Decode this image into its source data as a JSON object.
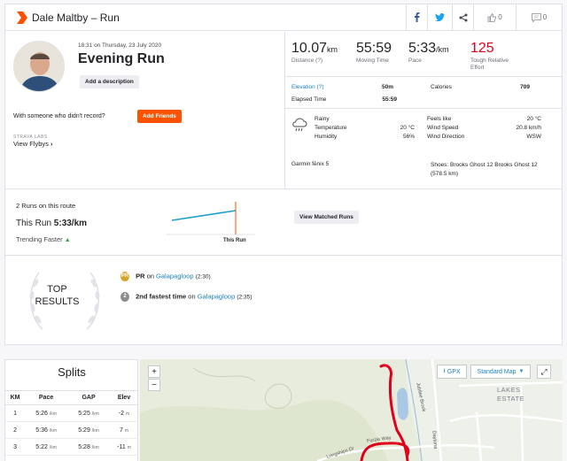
{
  "header": {
    "athlete": "Dale Maltby",
    "separator": "–",
    "activity_type": "Run",
    "kudos_count": "0",
    "comment_count": "0"
  },
  "activity": {
    "timestamp": "18:31 on Thursday, 23 July 2020",
    "name": "Evening Run",
    "add_description": "Add a description",
    "with_someone": "With someone who didn't record?",
    "add_friends": "Add Friends",
    "strava_labs": "STRAVA LABS",
    "view_flybys": "View Flybys"
  },
  "stats": [
    {
      "value": "10.07",
      "unit": "km",
      "label": "Distance (?)"
    },
    {
      "value": "55:59",
      "unit": "",
      "label": "Moving Time"
    },
    {
      "value": "5:33",
      "unit": "/km",
      "label": "Pace"
    },
    {
      "value": "125",
      "unit": "",
      "label": "Tough Relative Effort"
    }
  ],
  "more_stats": {
    "elevation_label": "Elevation (?)",
    "elevation": "50m",
    "calories_label": "Calories",
    "calories": "709",
    "elapsed_label": "Elapsed Time",
    "elapsed": "55:59"
  },
  "weather": {
    "condition": "Rainy",
    "temp_label": "Temperature",
    "temp": "20 °C",
    "humidity_label": "Humidity",
    "humidity": "56%",
    "feels_label": "Feels like",
    "feels": "20 °C",
    "wind_label": "Wind Speed",
    "wind": "20.8 km/h",
    "dir_label": "Wind Direction",
    "dir": "WSW"
  },
  "gear": {
    "device": "Garmin fēnix 5",
    "shoes": "Shoes: Brooks Ghost 12 Brooks Ghost 12",
    "shoes_km": "(578.5 km)"
  },
  "route": {
    "runs_on_route": "2 Runs on this route",
    "this_run_label": "This Run",
    "this_run_pace": "5:33/km",
    "trending": "Trending Faster",
    "chart_label": "This Run",
    "matched": "View Matched Runs"
  },
  "top_results": {
    "line1": "TOP",
    "line2": "RESULTS"
  },
  "achievements": [
    {
      "medal": "PR",
      "rank": "PR",
      "on": "on",
      "segment": "Galapagloop",
      "time": "(2:30)",
      "color": "#d4a52a"
    },
    {
      "medal": "2",
      "rank": "2nd fastest time",
      "on": "on",
      "segment": "Galapagloop",
      "time": "(2:35)",
      "color": "#8c8c8c"
    }
  ],
  "splits": {
    "title": "Splits",
    "headers": [
      "KM",
      "Pace",
      "GAP",
      "Elev"
    ],
    "rows": [
      {
        "km": "1",
        "pace": "5:26",
        "pace_unit": "/km",
        "gap": "5:25",
        "gap_unit": "/km",
        "elev": "-2",
        "elev_unit": "m"
      },
      {
        "km": "2",
        "pace": "5:36",
        "pace_unit": "/km",
        "gap": "5:29",
        "gap_unit": "/km",
        "elev": "7",
        "elev_unit": "m"
      },
      {
        "km": "3",
        "pace": "5:22",
        "pace_unit": "/km",
        "gap": "5:28",
        "gap_unit": "/km",
        "elev": "-11",
        "elev_unit": "m"
      }
    ]
  },
  "map": {
    "zoom_in": "+",
    "zoom_out": "−",
    "gpx": "GPX",
    "map_style": "Standard Map",
    "place_lakes": "LAKES",
    "place_estate": "ESTATE",
    "street_furzie": "Furzie Way",
    "street_longships": "Longships Dr",
    "street_jubilee": "Jubilee Brook",
    "street_daytona": "Daytona"
  },
  "colors": {
    "accent": "#fc5200",
    "link": "#1a7fc1",
    "route": "#e0001b",
    "trend_line": "#1a9ecb"
  }
}
